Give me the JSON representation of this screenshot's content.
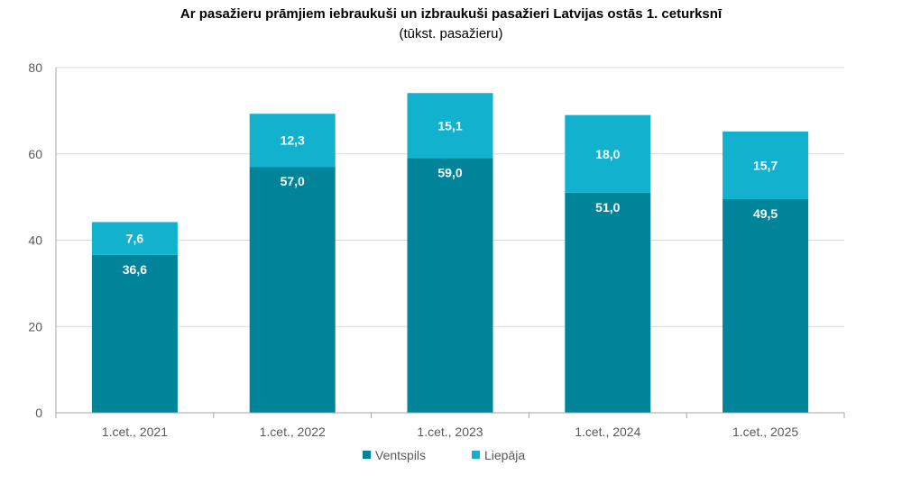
{
  "chart_data": {
    "type": "bar",
    "stacked": true,
    "title": "Ar pasažieru prāmjiem iebraukuši un izbraukuši pasažieri Latvijas ostās 1. ceturksnī",
    "subtitle": "(tūkst. pasažieru)",
    "xlabel": "",
    "ylabel": "",
    "categories": [
      "1.cet., 2021",
      "1.cet., 2022",
      "1.cet., 2023",
      "1.cet., 2024",
      "1.cet., 2025"
    ],
    "series": [
      {
        "name": "Ventspils",
        "color": "#00849a",
        "values": [
          36.6,
          57.0,
          59.0,
          51.0,
          49.5
        ],
        "labels": [
          "36,6",
          "57,0",
          "59,0",
          "51,0",
          "49,5"
        ]
      },
      {
        "name": "Liepāja",
        "color": "#12b2cf",
        "values": [
          7.6,
          12.3,
          15.1,
          18.0,
          15.7
        ],
        "labels": [
          "7,6",
          "12,3",
          "15,1",
          "18,0",
          "15,7"
        ]
      }
    ],
    "ylim": [
      0,
      80
    ],
    "yticks": [
      0,
      20,
      40,
      60,
      80
    ],
    "grid": true,
    "legend": "bottom-center"
  }
}
